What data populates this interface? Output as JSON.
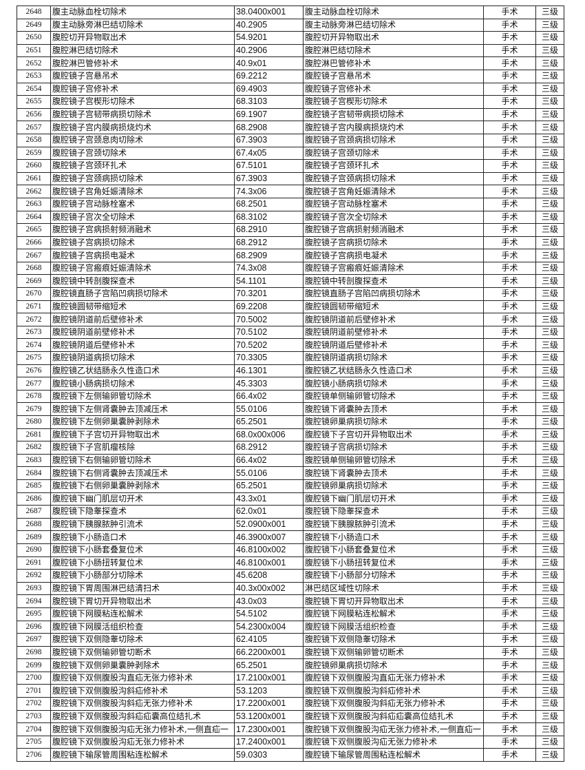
{
  "table": {
    "rows": [
      [
        "2648",
        "腹主动脉血栓切除术",
        "38.0400x001",
        "腹主动脉血栓切除术",
        "手术",
        "三级"
      ],
      [
        "2649",
        "腹主动脉旁淋巴结切除术",
        "40.2905",
        "腹主动脉旁淋巴结切除术",
        "手术",
        "三级"
      ],
      [
        "2650",
        "腹腔切开异物取出术",
        "54.9201",
        "腹腔切开异物取出术",
        "手术",
        "三级"
      ],
      [
        "2651",
        "腹腔淋巴结切除术",
        "40.2906",
        "腹腔淋巴结切除术",
        "手术",
        "三级"
      ],
      [
        "2652",
        "腹腔淋巴管修补术",
        "40.9x01",
        "腹腔淋巴管修补术",
        "手术",
        "三级"
      ],
      [
        "2653",
        "腹腔镜子宫悬吊术",
        "69.2212",
        "腹腔镜子宫悬吊术",
        "手术",
        "三级"
      ],
      [
        "2654",
        "腹腔镜子宫修补术",
        "69.4903",
        "腹腔镜子宫修补术",
        "手术",
        "三级"
      ],
      [
        "2655",
        "腹腔镜子宫楔形切除术",
        "68.3103",
        "腹腔镜子宫楔形切除术",
        "手术",
        "三级"
      ],
      [
        "2656",
        "腹腔镜子宫韧带病损切除术",
        "69.1907",
        "腹腔镜子宫韧带病损切除术",
        "手术",
        "三级"
      ],
      [
        "2657",
        "腹腔镜子宫内膜病损烧灼术",
        "68.2908",
        "腹腔镜子宫内膜病损烧灼术",
        "手术",
        "三级"
      ],
      [
        "2658",
        "腹腔镜子宫颈息肉切除术",
        "67.3903",
        "腹腔镜子宫颈病损切除术",
        "手术",
        "三级"
      ],
      [
        "2659",
        "腹腔镜子宫颈切除术",
        "67.4x05",
        "腹腔镜子宫颈切除术",
        "手术",
        "三级"
      ],
      [
        "2660",
        "腹腔镜子宫颈环扎术",
        "67.5101",
        "腹腔镜子宫颈环扎术",
        "手术",
        "三级"
      ],
      [
        "2661",
        "腹腔镜子宫颈病损切除术",
        "67.3903",
        "腹腔镜子宫颈病损切除术",
        "手术",
        "三级"
      ],
      [
        "2662",
        "腹腔镜子宫角妊娠清除术",
        "74.3x06",
        "腹腔镜子宫角妊娠清除术",
        "手术",
        "三级"
      ],
      [
        "2663",
        "腹腔镜子宫动脉栓塞术",
        "68.2501",
        "腹腔镜子宫动脉栓塞术",
        "手术",
        "三级"
      ],
      [
        "2664",
        "腹腔镜子宫次全切除术",
        "68.3102",
        "腹腔镜子宫次全切除术",
        "手术",
        "三级"
      ],
      [
        "2665",
        "腹腔镜子宫病损射频消融术",
        "68.2910",
        "腹腔镜子宫病损射频消融术",
        "手术",
        "三级"
      ],
      [
        "2666",
        "腹腔镜子宫病损切除术",
        "68.2912",
        "腹腔镜子宫病损切除术",
        "手术",
        "三级"
      ],
      [
        "2667",
        "腹腔镜子宫病损电凝术",
        "68.2909",
        "腹腔镜子宫病损电凝术",
        "手术",
        "三级"
      ],
      [
        "2668",
        "腹腔镜子宫瘢痕妊娠清除术",
        "74.3x08",
        "腹腔镜子宫瘢痕妊娠清除术",
        "手术",
        "三级"
      ],
      [
        "2669",
        "腹腔镜中转剖腹探查术",
        "54.1101",
        "腹腔镜中转剖腹探查术",
        "手术",
        "三级"
      ],
      [
        "2670",
        "腹腔镜直肠子宫陷凹病损切除术",
        "70.3201",
        "腹腔镜直肠子宫陷凹病损切除术",
        "手术",
        "三级"
      ],
      [
        "2671",
        "腹腔镜圆韧带缩短术",
        "69.2208",
        "腹腔镜圆韧带缩短术",
        "手术",
        "三级"
      ],
      [
        "2672",
        "腹腔镜阴道前后壁修补术",
        "70.5002",
        "腹腔镜阴道前后壁修补术",
        "手术",
        "三级"
      ],
      [
        "2673",
        "腹腔镜阴道前壁修补术",
        "70.5102",
        "腹腔镜阴道前壁修补术",
        "手术",
        "三级"
      ],
      [
        "2674",
        "腹腔镜阴道后壁修补术",
        "70.5202",
        "腹腔镜阴道后壁修补术",
        "手术",
        "三级"
      ],
      [
        "2675",
        "腹腔镜阴道病损切除术",
        "70.3305",
        "腹腔镜阴道病损切除术",
        "手术",
        "三级"
      ],
      [
        "2676",
        "腹腔镜乙状结肠永久性造口术",
        "46.1301",
        "腹腔镜乙状结肠永久性造口术",
        "手术",
        "三级"
      ],
      [
        "2677",
        "腹腔镜小肠病损切除术",
        "45.3303",
        "腹腔镜小肠病损切除术",
        "手术",
        "三级"
      ],
      [
        "2678",
        "腹腔镜下左侧输卵管切除术",
        "66.4x02",
        "腹腔镜单侧输卵管切除术",
        "手术",
        "三级"
      ],
      [
        "2679",
        "腹腔镜下左侧肾囊肿去顶减压术",
        "55.0106",
        "腹腔镜下肾囊肿去顶术",
        "手术",
        "三级"
      ],
      [
        "2680",
        "腹腔镜下左侧卵巢囊肿剥除术",
        "65.2501",
        "腹腔镜卵巢病损切除术",
        "手术",
        "三级"
      ],
      [
        "2681",
        "腹腔镜下子宫切开异物取出术",
        "68.0x00x006",
        "腹腔镜下子宫切开异物取出术",
        "手术",
        "三级"
      ],
      [
        "2682",
        "腹腔镜下子宫肌瘤核除",
        "68.2912",
        "腹腔镜子宫病损切除术",
        "手术",
        "三级"
      ],
      [
        "2683",
        "腹腔镜下右侧输卵管切除术",
        "66.4x02",
        "腹腔镜单侧输卵管切除术",
        "手术",
        "三级"
      ],
      [
        "2684",
        "腹腔镜下右侧肾囊肿去顶减压术",
        "55.0106",
        "腹腔镜下肾囊肿去顶术",
        "手术",
        "三级"
      ],
      [
        "2685",
        "腹腔镜下右侧卵巢囊肿剥除术",
        "65.2501",
        "腹腔镜卵巢病损切除术",
        "手术",
        "三级"
      ],
      [
        "2686",
        "腹腔镜下幽门肌层切开术",
        "43.3x01",
        "腹腔镜下幽门肌层切开术",
        "手术",
        "三级"
      ],
      [
        "2687",
        "腹腔镜下隐睾探查术",
        "62.0x01",
        "腹腔镜下隐睾探查术",
        "手术",
        "三级"
      ],
      [
        "2688",
        "腹腔镜下胰腺脓肿引流术",
        "52.0900x001",
        "腹腔镜下胰腺脓肿引流术",
        "手术",
        "三级"
      ],
      [
        "2689",
        "腹腔镜下小肠造口术",
        "46.3900x007",
        "腹腔镜下小肠造口术",
        "手术",
        "三级"
      ],
      [
        "2690",
        "腹腔镜下小肠套叠复位术",
        "46.8100x002",
        "腹腔镜下小肠套叠复位术",
        "手术",
        "三级"
      ],
      [
        "2691",
        "腹腔镜下小肠扭转复位术",
        "46.8100x001",
        "腹腔镜下小肠扭转复位术",
        "手术",
        "三级"
      ],
      [
        "2692",
        "腹腔镜下小肠部分切除术",
        "45.6208",
        "腹腔镜下小肠部分切除术",
        "手术",
        "三级"
      ],
      [
        "2693",
        "腹腔镜下胃周围淋巴结清扫术",
        "40.3x00x002",
        "淋巴结区域性切除术",
        "手术",
        "三级"
      ],
      [
        "2694",
        "腹腔镜下胃切开异物取出术",
        "43.0x03",
        "腹腔镜下胃切开异物取出术",
        "手术",
        "三级"
      ],
      [
        "2695",
        "腹腔镜下网膜粘连松解术",
        "54.5102",
        "腹腔镜下网膜粘连松解术",
        "手术",
        "三级"
      ],
      [
        "2696",
        "腹腔镜下网膜活组织检查",
        "54.2300x004",
        "腹腔镜下网膜活组织检查",
        "手术",
        "三级"
      ],
      [
        "2697",
        "腹腔镜下双侧隐睾切除术",
        "62.4105",
        "腹腔镜下双侧隐睾切除术",
        "手术",
        "三级"
      ],
      [
        "2698",
        "腹腔镜下双侧输卵管切断术",
        "66.2200x001",
        "腹腔镜下双侧输卵管切断术",
        "手术",
        "三级"
      ],
      [
        "2699",
        "腹腔镜下双侧卵巢囊肿剥除术",
        "65.2501",
        "腹腔镜卵巢病损切除术",
        "手术",
        "三级"
      ],
      [
        "2700",
        "腹腔镜下双侧腹股沟直疝无张力修补术",
        "17.2100x001",
        "腹腔镜下双侧腹股沟直疝无张力修补术",
        "手术",
        "三级"
      ],
      [
        "2701",
        "腹腔镜下双侧腹股沟斜疝修补术",
        "53.1203",
        "腹腔镜下双侧腹股沟斜疝修补术",
        "手术",
        "三级"
      ],
      [
        "2702",
        "腹腔镜下双侧腹股沟斜疝无张力修补术",
        "17.2200x001",
        "腹腔镜下双侧腹股沟斜疝无张力修补术",
        "手术",
        "三级"
      ],
      [
        "2703",
        "腹腔镜下双侧腹股沟斜疝疝囊高位结扎术",
        "53.1200x001",
        "腹腔镜下双侧腹股沟斜疝疝囊高位结扎术",
        "手术",
        "三级"
      ],
      [
        "2704",
        "腹腔镜下双侧腹股沟疝无张力修补术,一侧直疝一",
        "17.2300x001",
        "腹腔镜下双侧腹股沟疝无张力修补术,一侧直疝一",
        "手术",
        "三级"
      ],
      [
        "2705",
        "腹腔镜下双侧腹股沟疝无张力修补术",
        "17.2400x001",
        "腹腔镜下双侧腹股沟疝无张力修补术",
        "手术",
        "三级"
      ],
      [
        "2706",
        "腹腔镜下输尿管周围粘连松解术",
        "59.0303",
        "腹腔镜下输尿管周围粘连松解术",
        "手术",
        "三级"
      ]
    ]
  }
}
